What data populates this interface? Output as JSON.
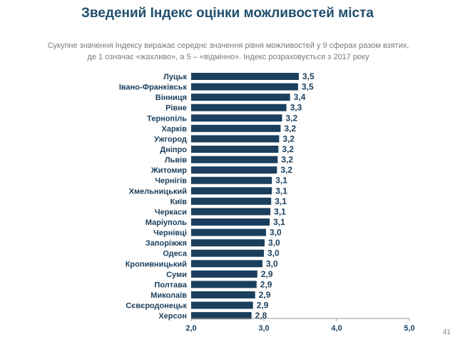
{
  "header": {
    "title": "Зведений Індекс оцінки можливостей міста",
    "subtitle_line1": "Сукупне значення Індексу виражає середнє значення рівня можливостей у 9 сферах разом взятих,",
    "subtitle_line2": "де 1 означає «жахливо», а 5 – «відмінно». Індекс розраховується з 2017 року"
  },
  "footer": {
    "page_number": "41"
  },
  "colors": {
    "bar": "#1b3f5c",
    "title": "#1f4e6b",
    "axis": "#999999",
    "tick_text": "#1b3f5c"
  },
  "chart_data": {
    "type": "bar",
    "orientation": "horizontal",
    "categories": [
      "Луцьк",
      "Івано-Франківськ",
      "Вінниця",
      "Рівне",
      "Тернопіль",
      "Харків",
      "Ужгород",
      "Дніпро",
      "Львів",
      "Житомир",
      "Чернігів",
      "Хмельницький",
      "Київ",
      "Черкаси",
      "Маріуполь",
      "Чернівці",
      "Запоріжжя",
      "Одеса",
      "Кропивницький",
      "Суми",
      "Полтава",
      "Миколаїв",
      "Сєвєродонецьк",
      "Херсон"
    ],
    "values": [
      3.48,
      3.47,
      3.36,
      3.31,
      3.25,
      3.23,
      3.21,
      3.2,
      3.19,
      3.18,
      3.11,
      3.11,
      3.1,
      3.09,
      3.08,
      3.03,
      3.01,
      3.0,
      2.98,
      2.91,
      2.9,
      2.88,
      2.85,
      2.83
    ],
    "value_labels": [
      "3,5",
      "3,5",
      "3,4",
      "3,3",
      "3,2",
      "3,2",
      "3,2",
      "3,2",
      "3,2",
      "3,2",
      "3,1",
      "3,1",
      "3,1",
      "3,1",
      "3,1",
      "3,0",
      "3,0",
      "3,0",
      "3,0",
      "2,9",
      "2,9",
      "2,9",
      "2,9",
      "2,8"
    ],
    "xlim": [
      2.0,
      5.0
    ],
    "x_ticks": [
      2.0,
      3.0,
      4.0,
      5.0
    ],
    "x_tick_labels": [
      "2,0",
      "3,0",
      "4,0",
      "5,0"
    ],
    "grid": false,
    "legend": "none"
  }
}
